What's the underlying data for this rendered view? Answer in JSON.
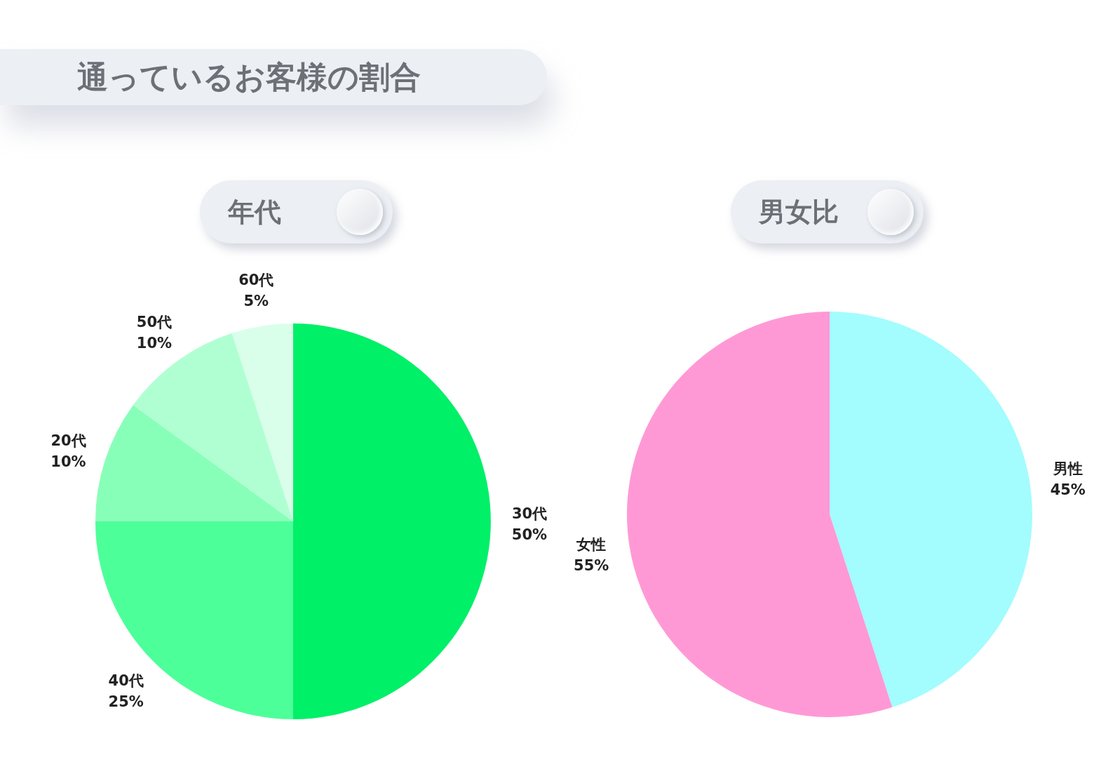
{
  "chart_data": [
    {
      "type": "pie",
      "title": "年代",
      "annotations": [
        "通っているお客様の割合"
      ],
      "categories": [
        "30代",
        "40代",
        "20代",
        "50代",
        "60代"
      ],
      "values": [
        50,
        25,
        10,
        10,
        5
      ],
      "colors": [
        "#00f068",
        "#4dff99",
        "#88ffb8",
        "#b0ffd3",
        "#d9ffea"
      ],
      "value_labels": [
        "50%",
        "25%",
        "10%",
        "10%",
        "5%"
      ]
    },
    {
      "type": "pie",
      "title": "男女比",
      "categories": [
        "男性",
        "女性"
      ],
      "values": [
        45,
        55
      ],
      "colors": [
        "#a3fcfd",
        "#ff99d6"
      ],
      "value_labels": [
        "45%",
        "55%"
      ]
    }
  ]
}
